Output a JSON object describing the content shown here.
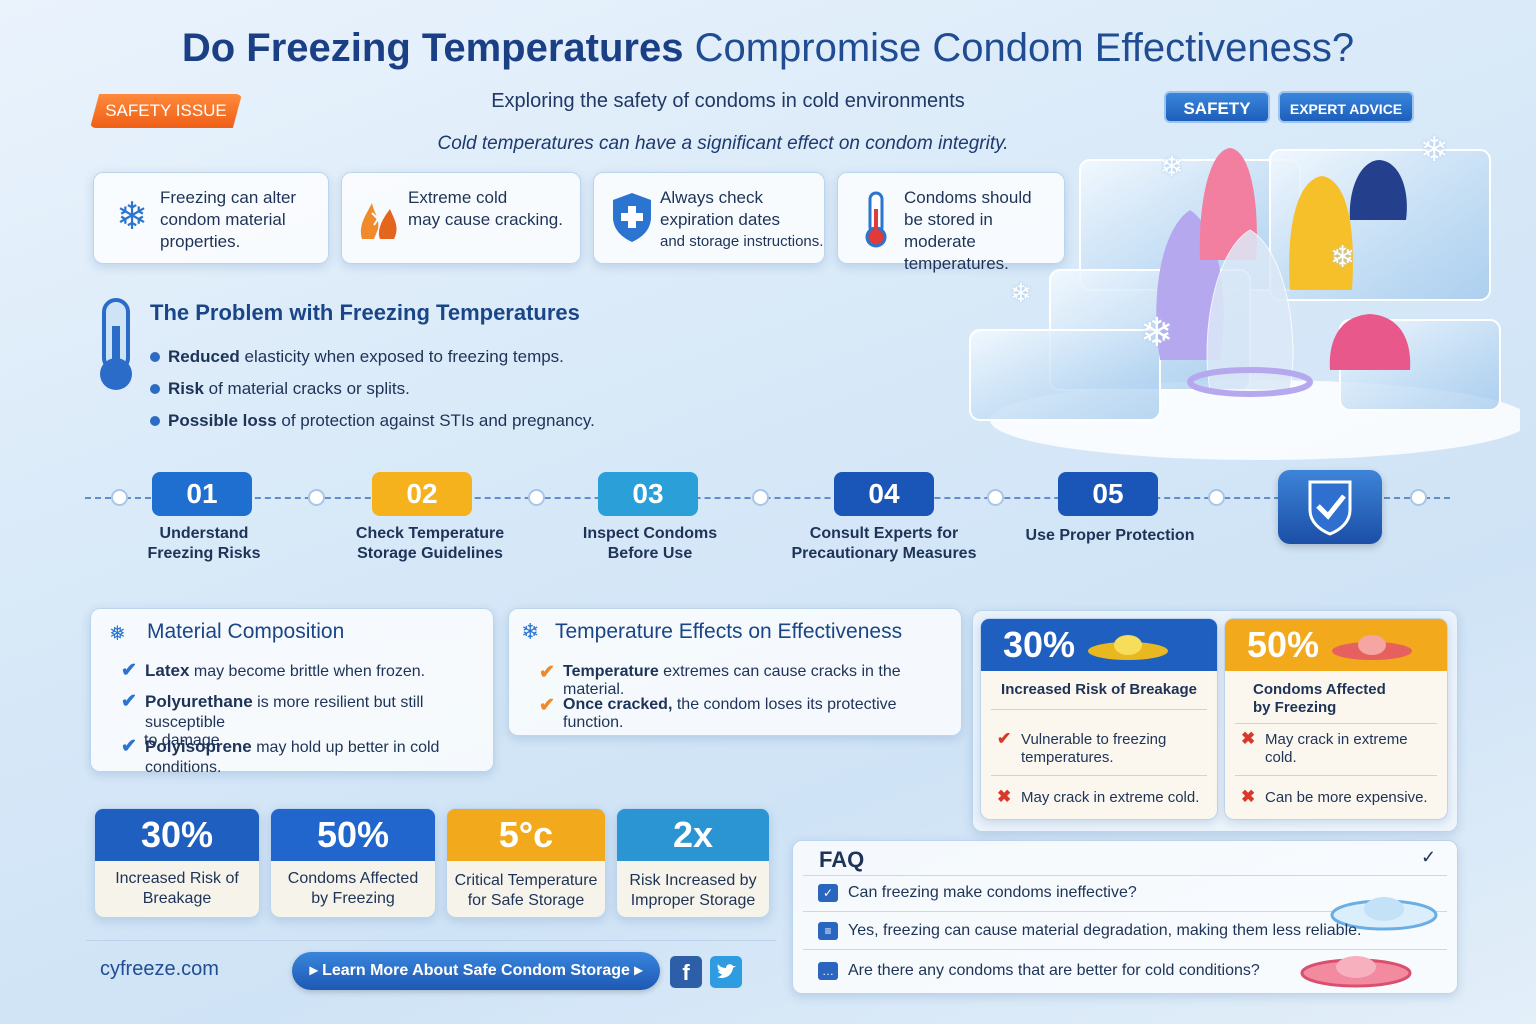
{
  "header": {
    "title_bold": "Do Freezing Temperatures",
    "title_rest": "Compromise Condom Effectiveness?",
    "tag": "SAFETY ISSUE",
    "subtitle": "Exploring the safety of condoms in cold environments",
    "badge_safety": "SAFETY",
    "badge_expert": "EXPERT ADVICE",
    "tagline": "Cold temperatures can have a significant effect on condom integrity."
  },
  "info_cards": [
    {
      "icon": "snowflake-icon",
      "l1": "Freezing can alter",
      "l2": "condom material",
      "l3": "properties."
    },
    {
      "icon": "crack-icon",
      "l1": "Extreme cold",
      "l2": "may cause cracking.",
      "l3": ""
    },
    {
      "icon": "shield-icon",
      "l1": "Always check",
      "l2": "expiration dates",
      "l3": "and storage instructions."
    },
    {
      "icon": "thermometer-icon",
      "l1": "Condoms should",
      "l2": "be stored in moderate",
      "l3": "temperatures."
    }
  ],
  "problem": {
    "title": "The Problem with Freezing Temperatures",
    "bullets": [
      {
        "bold": "Reduced",
        "rest": " elasticity when exposed to freezing temps."
      },
      {
        "bold": "Risk",
        "rest": " of material cracks or splits."
      },
      {
        "bold": "Possible loss",
        "rest": " of protection against STIs and pregnancy."
      }
    ]
  },
  "steps": [
    {
      "num": "01",
      "l1": "Understand",
      "l2": "Freezing Risks",
      "color": "#1f6fd1"
    },
    {
      "num": "02",
      "l1": "Check Temperature",
      "l2": "Storage Guidelines",
      "color": "#f5b21c"
    },
    {
      "num": "03",
      "l1": "Inspect Condoms",
      "l2": "Before Use",
      "color": "#2a9fd8"
    },
    {
      "num": "04",
      "l1": "Consult Experts for",
      "l2": "Precautionary Measures",
      "color": "#1a55b8"
    },
    {
      "num": "05",
      "l1": "Use Proper Protection",
      "l2": "",
      "color": "#1a55b8"
    }
  ],
  "material": {
    "title": "Material Composition",
    "items": [
      {
        "bold": "Latex",
        "rest": " may become brittle when frozen.",
        "rest2": ""
      },
      {
        "bold": "Polyurethane",
        "rest": " is more resilient but still susceptible",
        "rest2": "to damage"
      },
      {
        "bold": "Polyisoprene",
        "rest": " may hold up better in cold conditions.",
        "rest2": ""
      }
    ]
  },
  "temperature": {
    "title": "Temperature Effects on Effectiveness",
    "items": [
      {
        "bold": "Temperature",
        "rest": " extremes can cause cracks in the material."
      },
      {
        "bold": "Once cracked,",
        "rest": " the condom loses its protective function."
      }
    ]
  },
  "compare": [
    {
      "value": "30%",
      "l1": "Increased Risk of Breakage",
      "l2": "",
      "li1a": "Vulnerable to freezing",
      "li1b": "temperatures.",
      "li2": "May crack in extreme cold.",
      "m1": "✔",
      "m2": "✖"
    },
    {
      "value": "50%",
      "l1": "Condoms Affected",
      "l2": "by Freezing",
      "li1a": "May crack in extreme",
      "li1b": "cold.",
      "li2": "Can be more expensive.",
      "m1": "✖",
      "m2": "✖"
    }
  ],
  "stats": [
    {
      "value": "30%",
      "l1": "Increased Risk of",
      "l2": "Breakage",
      "color": "#1f5fbf"
    },
    {
      "value": "50%",
      "l1": "Condoms Affected",
      "l2": "by Freezing",
      "color": "#2066cc"
    },
    {
      "value": "5°c",
      "l1": "Critical Temperature",
      "l2": "for Safe Storage",
      "color": "#f3a91c"
    },
    {
      "value": "2x",
      "l1": "Risk Increased by",
      "l2": "Improper Storage",
      "color": "#2b95d3"
    }
  ],
  "faq": {
    "title": "FAQ",
    "q1": "Can freezing make condoms ineffective?",
    "a1": "Yes, freezing can cause material degradation, making them less reliable.",
    "q2": "Are there any condoms that are better for cold conditions?"
  },
  "footer": {
    "site": "cyfreeze.com",
    "cta": "Learn More About Safe Condom Storage"
  }
}
